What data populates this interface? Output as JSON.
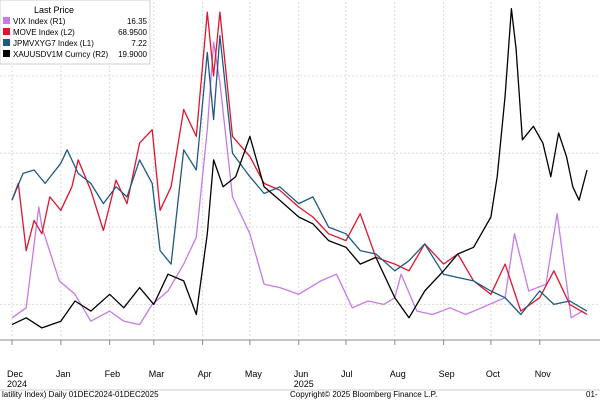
{
  "legend": {
    "header": "Last Price",
    "entries": [
      {
        "name": "VIX Index  (R1)",
        "value": "16.35",
        "color": "#c77ae6"
      },
      {
        "name": "MOVE Index  (L2)",
        "value": "68.9500",
        "color": "#e0142f"
      },
      {
        "name": "JPMVXYG7 Index  (L1)",
        "value": "7.22",
        "color": "#1f5a82"
      },
      {
        "name": "XAUUSDV1M Curncy  (R2)",
        "value": "19.9000",
        "color": "#000000"
      }
    ]
  },
  "footer": {
    "left": "latility Index) Daily 01DEC2024-01DEC2025",
    "center": "Copyright© 2025 Bloomberg Finance L.P.",
    "right": "01-"
  },
  "chart_data": {
    "type": "line",
    "title": "",
    "x_range": [
      "2024-12-01",
      "2025-12-01"
    ],
    "x_ticks": [
      {
        "label": "Dec",
        "date": "2024-12-01"
      },
      {
        "label": "Jan",
        "date": "2025-01-01"
      },
      {
        "label": "Feb",
        "date": "2025-02-01"
      },
      {
        "label": "Mar",
        "date": "2025-03-01"
      },
      {
        "label": "Apr",
        "date": "2025-04-01"
      },
      {
        "label": "May",
        "date": "2025-05-01"
      },
      {
        "label": "Jun",
        "date": "2025-06-01"
      },
      {
        "label": "Jul",
        "date": "2025-07-01"
      },
      {
        "label": "Aug",
        "date": "2025-08-01"
      },
      {
        "label": "Sep",
        "date": "2025-09-01"
      },
      {
        "label": "Oct",
        "date": "2025-10-01"
      },
      {
        "label": "Nov",
        "date": "2025-11-01"
      }
    ],
    "year_labels": [
      {
        "label": "2024",
        "date": "2024-12-01"
      },
      {
        "label": "2025",
        "date": "2025-06-01"
      }
    ],
    "y_axis_note": "Each series is plotted on its own scale; axis tick values are not visible in the image. Values below are normalized levels (0 = bottom of plot area, 1 = top).",
    "y_range": [
      0,
      1
    ],
    "grid": true,
    "legend_position": "top-left",
    "series": [
      {
        "name": "VIX Index  (R1)",
        "color": "#c77ae6",
        "x": [
          "2024-12-01",
          "2024-12-10",
          "2024-12-18",
          "2024-12-20",
          "2024-12-31",
          "2025-01-10",
          "2025-01-20",
          "2025-02-01",
          "2025-02-10",
          "2025-02-20",
          "2025-02-28",
          "2025-03-10",
          "2025-03-20",
          "2025-03-28",
          "2025-04-04",
          "2025-04-08",
          "2025-04-12",
          "2025-04-20",
          "2025-05-01",
          "2025-05-10",
          "2025-05-20",
          "2025-06-01",
          "2025-06-15",
          "2025-06-25",
          "2025-07-05",
          "2025-07-15",
          "2025-07-25",
          "2025-08-01",
          "2025-08-05",
          "2025-08-15",
          "2025-08-25",
          "2025-09-05",
          "2025-09-15",
          "2025-09-25",
          "2025-10-05",
          "2025-10-10",
          "2025-10-16",
          "2025-10-25",
          "2025-11-05",
          "2025-11-12",
          "2025-11-21",
          "2025-11-28",
          "2025-12-01"
        ],
        "values": [
          0.06,
          0.09,
          0.39,
          0.33,
          0.17,
          0.13,
          0.05,
          0.08,
          0.05,
          0.04,
          0.1,
          0.14,
          0.22,
          0.3,
          0.62,
          0.88,
          0.76,
          0.42,
          0.31,
          0.16,
          0.15,
          0.13,
          0.17,
          0.19,
          0.09,
          0.11,
          0.1,
          0.12,
          0.19,
          0.08,
          0.07,
          0.09,
          0.07,
          0.09,
          0.11,
          0.12,
          0.31,
          0.14,
          0.16,
          0.37,
          0.06,
          0.08,
          0.07
        ]
      },
      {
        "name": "MOVE Index  (L2)",
        "color": "#e0142f",
        "x": [
          "2024-12-01",
          "2024-12-05",
          "2024-12-10",
          "2024-12-15",
          "2024-12-20",
          "2024-12-25",
          "2025-01-01",
          "2025-01-08",
          "2025-01-12",
          "2025-01-20",
          "2025-01-28",
          "2025-02-05",
          "2025-02-12",
          "2025-02-20",
          "2025-02-28",
          "2025-03-05",
          "2025-03-12",
          "2025-03-20",
          "2025-03-28",
          "2025-04-04",
          "2025-04-08",
          "2025-04-12",
          "2025-04-20",
          "2025-05-01",
          "2025-05-10",
          "2025-05-20",
          "2025-06-01",
          "2025-06-10",
          "2025-06-20",
          "2025-07-01",
          "2025-07-10",
          "2025-07-20",
          "2025-08-01",
          "2025-08-10",
          "2025-08-20",
          "2025-09-01",
          "2025-09-10",
          "2025-09-20",
          "2025-10-01",
          "2025-10-10",
          "2025-10-20",
          "2025-11-01",
          "2025-11-10",
          "2025-11-20",
          "2025-12-01"
        ],
        "values": [
          0.41,
          0.46,
          0.26,
          0.35,
          0.31,
          0.42,
          0.38,
          0.45,
          0.53,
          0.44,
          0.32,
          0.47,
          0.4,
          0.58,
          0.62,
          0.38,
          0.45,
          0.68,
          0.6,
          0.97,
          0.78,
          0.97,
          0.6,
          0.54,
          0.46,
          0.44,
          0.39,
          0.36,
          0.31,
          0.29,
          0.37,
          0.24,
          0.22,
          0.2,
          0.28,
          0.22,
          0.25,
          0.17,
          0.13,
          0.22,
          0.08,
          0.12,
          0.2,
          0.1,
          0.07
        ]
      },
      {
        "name": "JPMVXYG7 Index  (L1)",
        "color": "#1f5a82",
        "x": [
          "2024-12-01",
          "2024-12-08",
          "2024-12-15",
          "2024-12-22",
          "2025-01-01",
          "2025-01-05",
          "2025-01-12",
          "2025-01-20",
          "2025-01-28",
          "2025-02-05",
          "2025-02-12",
          "2025-02-20",
          "2025-02-28",
          "2025-03-05",
          "2025-03-12",
          "2025-03-20",
          "2025-03-28",
          "2025-04-04",
          "2025-04-08",
          "2025-04-12",
          "2025-04-20",
          "2025-05-01",
          "2025-05-10",
          "2025-05-20",
          "2025-06-01",
          "2025-06-10",
          "2025-06-20",
          "2025-07-01",
          "2025-07-10",
          "2025-07-20",
          "2025-08-01",
          "2025-08-10",
          "2025-08-20",
          "2025-09-01",
          "2025-09-10",
          "2025-09-20",
          "2025-10-01",
          "2025-10-10",
          "2025-10-20",
          "2025-11-01",
          "2025-11-10",
          "2025-11-20",
          "2025-12-01"
        ],
        "values": [
          0.41,
          0.49,
          0.5,
          0.46,
          0.52,
          0.56,
          0.49,
          0.46,
          0.4,
          0.45,
          0.42,
          0.53,
          0.46,
          0.26,
          0.22,
          0.56,
          0.5,
          0.85,
          0.65,
          0.9,
          0.55,
          0.48,
          0.43,
          0.45,
          0.4,
          0.42,
          0.33,
          0.31,
          0.26,
          0.25,
          0.2,
          0.23,
          0.28,
          0.19,
          0.18,
          0.17,
          0.14,
          0.12,
          0.07,
          0.14,
          0.1,
          0.11,
          0.08
        ]
      },
      {
        "name": "XAUUSDV1M Curncy  (R2)",
        "color": "#000000",
        "x": [
          "2024-12-01",
          "2024-12-10",
          "2024-12-20",
          "2025-01-01",
          "2025-01-10",
          "2025-01-20",
          "2025-02-01",
          "2025-02-10",
          "2025-02-20",
          "2025-03-01",
          "2025-03-10",
          "2025-03-20",
          "2025-03-28",
          "2025-04-04",
          "2025-04-08",
          "2025-04-14",
          "2025-04-22",
          "2025-05-01",
          "2025-05-10",
          "2025-05-20",
          "2025-06-01",
          "2025-06-10",
          "2025-06-20",
          "2025-07-01",
          "2025-07-10",
          "2025-07-20",
          "2025-08-01",
          "2025-08-10",
          "2025-08-20",
          "2025-09-01",
          "2025-09-10",
          "2025-09-20",
          "2025-10-01",
          "2025-10-05",
          "2025-10-10",
          "2025-10-14",
          "2025-10-17",
          "2025-10-21",
          "2025-10-28",
          "2025-11-03",
          "2025-11-08",
          "2025-11-13",
          "2025-11-18",
          "2025-11-22",
          "2025-11-26",
          "2025-12-01"
        ],
        "values": [
          0.04,
          0.06,
          0.03,
          0.05,
          0.11,
          0.08,
          0.13,
          0.09,
          0.15,
          0.1,
          0.19,
          0.17,
          0.07,
          0.31,
          0.53,
          0.45,
          0.48,
          0.6,
          0.45,
          0.41,
          0.36,
          0.34,
          0.29,
          0.27,
          0.22,
          0.24,
          0.12,
          0.06,
          0.14,
          0.2,
          0.25,
          0.27,
          0.36,
          0.48,
          0.72,
          0.98,
          0.86,
          0.59,
          0.63,
          0.58,
          0.48,
          0.61,
          0.54,
          0.45,
          0.41,
          0.5
        ]
      }
    ]
  }
}
